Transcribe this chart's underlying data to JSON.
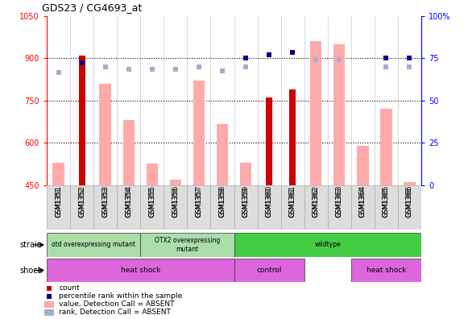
{
  "title": "GDS23 / CG4693_at",
  "samples": [
    "GSM1351",
    "GSM1352",
    "GSM1353",
    "GSM1354",
    "GSM1355",
    "GSM1356",
    "GSM1357",
    "GSM1358",
    "GSM1359",
    "GSM1360",
    "GSM1361",
    "GSM1362",
    "GSM1363",
    "GSM1364",
    "GSM1365",
    "GSM1366"
  ],
  "value_absent": [
    530,
    null,
    810,
    680,
    527,
    470,
    820,
    665,
    530,
    null,
    null,
    960,
    950,
    590,
    720,
    460
  ],
  "rank_absent": [
    850,
    null,
    870,
    860,
    860,
    860,
    870,
    855,
    870,
    null,
    null,
    895,
    895,
    null,
    870,
    870
  ],
  "count_values": [
    null,
    910,
    null,
    null,
    null,
    null,
    null,
    null,
    null,
    760,
    790,
    null,
    null,
    null,
    null,
    null
  ],
  "percentile_rank": [
    null,
    883,
    null,
    null,
    null,
    null,
    null,
    null,
    900,
    913,
    920,
    null,
    null,
    null,
    900,
    900
  ],
  "ylim_left": [
    450,
    1050
  ],
  "ylim_right": [
    0,
    100
  ],
  "yticks_left": [
    450,
    600,
    750,
    900,
    1050
  ],
  "yticks_right": [
    0,
    25,
    50,
    75,
    100
  ],
  "color_value_absent": "#ffaaaa",
  "color_rank_absent": "#aaaacc",
  "color_count": "#cc0000",
  "color_percentile": "#00008b",
  "bar_width": 0.5,
  "marker_size": 5,
  "strain_groups": [
    {
      "label": "otd overexpressing mutant",
      "start": 0,
      "end": 4,
      "color": "#aaddaa"
    },
    {
      "label": "OTX2 overexpressing\nmutant",
      "start": 4,
      "end": 8,
      "color": "#aaddaa"
    },
    {
      "label": "wildtype",
      "start": 8,
      "end": 16,
      "color": "#44cc44"
    }
  ],
  "shock_groups": [
    {
      "label": "heat shock",
      "start": 0,
      "end": 8,
      "color": "#dd66dd"
    },
    {
      "label": "control",
      "start": 8,
      "end": 11,
      "color": "#dd66dd"
    },
    {
      "label": "heat shock",
      "start": 13,
      "end": 16,
      "color": "#dd66dd"
    }
  ]
}
